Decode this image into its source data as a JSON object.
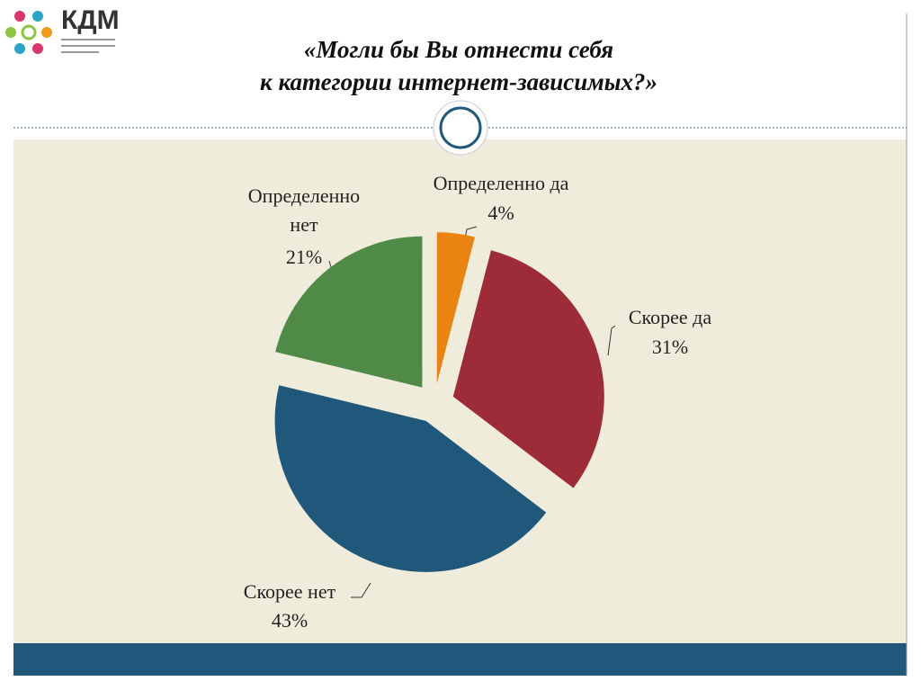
{
  "logo": {
    "text": "КДМ"
  },
  "chart_data": {
    "type": "pie",
    "title": [
      "«Могли бы Вы отнести себя",
      "к категории интернет-зависимых?»"
    ],
    "categories": [
      "Определенно да",
      "Скорее да",
      "Скорее нет",
      "Определенно нет"
    ],
    "values": [
      4,
      31,
      43,
      21
    ],
    "value_labels": [
      "4%",
      "31%",
      "43%",
      "21%"
    ],
    "colors": [
      "#ea830f",
      "#9e2b38",
      "#1f587b",
      "#4f8a47"
    ]
  }
}
